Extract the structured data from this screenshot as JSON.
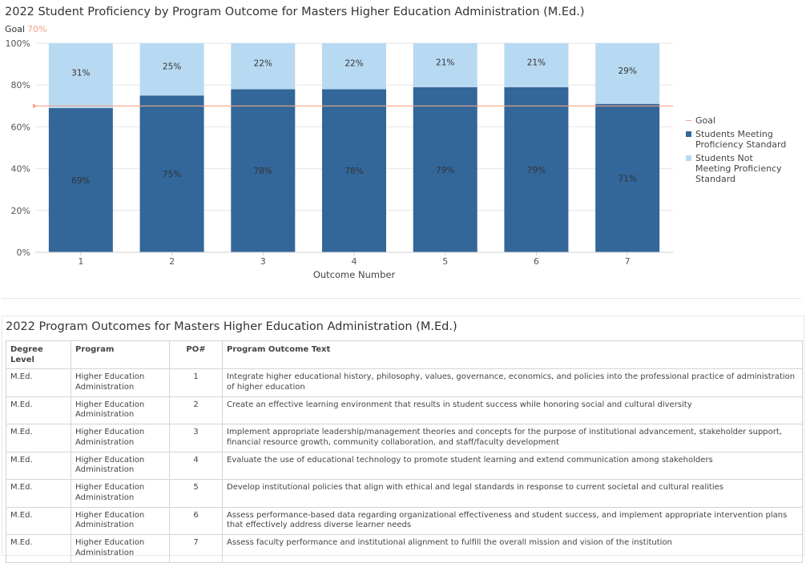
{
  "chart": {
    "title": "2022 Student Proficiency by Program Outcome for Masters Higher Education Administration (M.Ed.)",
    "goal_label": "Goal",
    "goal_value_text": "70%"
  },
  "chart_data": {
    "type": "bar",
    "stacked": true,
    "categories": [
      "1",
      "2",
      "3",
      "4",
      "5",
      "6",
      "7"
    ],
    "series": [
      {
        "name": "Students Meeting Proficiency Standard",
        "values": [
          69,
          75,
          78,
          78,
          79,
          79,
          71
        ],
        "labels": [
          "69%",
          "75%",
          "78%",
          "78%",
          "79%",
          "79%",
          "71%"
        ],
        "color": "#336699"
      },
      {
        "name": "Students Not Meeting Proficiency Standard",
        "values": [
          31,
          25,
          22,
          22,
          21,
          21,
          29
        ],
        "labels": [
          "31%",
          "25%",
          "22%",
          "22%",
          "21%",
          "21%",
          "29%"
        ],
        "color": "#b8d9f2"
      }
    ],
    "goal": {
      "name": "Goal",
      "value": 70,
      "color": "#f4a487"
    },
    "xlabel": "Outcome Number",
    "ylabel": "",
    "ylim": [
      0,
      100
    ],
    "yticks": [
      0,
      20,
      40,
      60,
      80,
      100
    ],
    "ytick_labels": [
      "0%",
      "20%",
      "40%",
      "60%",
      "80%",
      "100%"
    ],
    "grid": true,
    "legend_position": "right"
  },
  "table": {
    "title": "2022 Program Outcomes for Masters Higher Education Administration (M.Ed.)",
    "headers": [
      "Degree Level",
      "Program",
      "PO#",
      "Program Outcome Text"
    ],
    "rows": [
      [
        "M.Ed.",
        "Higher Education Administration",
        "1",
        "Integrate higher educational history, philosophy, values, governance, economics, and policies into the professional practice of administration of higher education"
      ],
      [
        "M.Ed.",
        "Higher Education Administration",
        "2",
        "Create an effective learning environment that results in student success while honoring social and cultural diversity"
      ],
      [
        "M.Ed.",
        "Higher Education Administration",
        "3",
        "Implement appropriate leadership/management theories and concepts for the purpose of institutional advancement, stakeholder support, financial resource growth, community collaboration, and staff/faculty development"
      ],
      [
        "M.Ed.",
        "Higher Education Administration",
        "4",
        "Evaluate the use of educational technology to promote student learning and extend communication among stakeholders"
      ],
      [
        "M.Ed.",
        "Higher Education Administration",
        "5",
        "Develop institutional policies that align with ethical and legal standards in response to current societal and cultural realities"
      ],
      [
        "M.Ed.",
        "Higher Education Administration",
        "6",
        "Assess performance-based data regarding organizational effectiveness and student success, and implement appropriate intervention plans that effectively address diverse learner needs"
      ],
      [
        "M.Ed.",
        "Higher Education Administration",
        "7",
        "Assess faculty performance and institutional alignment to fulfill the overall mission and vision of the institution"
      ]
    ]
  }
}
